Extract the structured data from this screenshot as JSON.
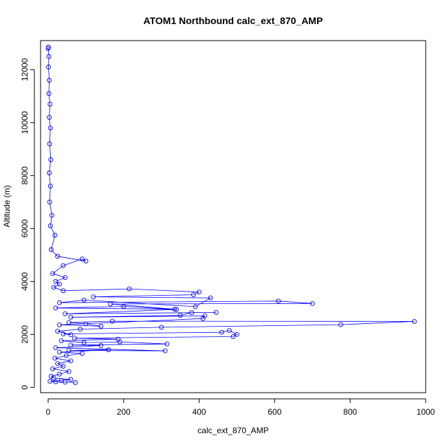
{
  "chart_data": {
    "type": "scatter",
    "title": "ATOM1 Northbound calc_ext_870_AMP",
    "xlabel": "calc_ext_870_AMP",
    "ylabel": "Altitude (m)",
    "xlim": [
      -20,
      1000
    ],
    "ylim": [
      -200,
      13100
    ],
    "xticks": [
      0,
      200,
      400,
      600,
      800,
      1000
    ],
    "yticks": [
      0,
      2000,
      4000,
      6000,
      8000,
      10000,
      12000
    ],
    "marker": "open-circle",
    "connect_points": true,
    "series": [
      {
        "color": "#0000ff",
        "points": [
          [
            72,
            180
          ],
          [
            45,
            200
          ],
          [
            20,
            210
          ],
          [
            5,
            230
          ],
          [
            35,
            260
          ],
          [
            60,
            300
          ],
          [
            15,
            350
          ],
          [
            8,
            420
          ],
          [
            30,
            500
          ],
          [
            55,
            600
          ],
          [
            12,
            700
          ],
          [
            40,
            800
          ],
          [
            25,
            900
          ],
          [
            60,
            1000
          ],
          [
            18,
            1100
          ],
          [
            48,
            1200
          ],
          [
            90,
            1280
          ],
          [
            30,
            1330
          ],
          [
            160,
            1420
          ],
          [
            55,
            1400
          ],
          [
            310,
            1380
          ],
          [
            20,
            1500
          ],
          [
            140,
            1580
          ],
          [
            60,
            1600
          ],
          [
            315,
            1640
          ],
          [
            190,
            1720
          ],
          [
            95,
            1690
          ],
          [
            35,
            1760
          ],
          [
            185,
            1820
          ],
          [
            70,
            1860
          ],
          [
            490,
            1920
          ],
          [
            500,
            2000
          ],
          [
            480,
            2150
          ],
          [
            460,
            2080
          ],
          [
            40,
            2020
          ],
          [
            60,
            1990
          ],
          [
            25,
            2120
          ],
          [
            85,
            2200
          ],
          [
            300,
            2270
          ],
          [
            775,
            2370
          ],
          [
            970,
            2490
          ],
          [
            170,
            2500
          ],
          [
            55,
            2450
          ],
          [
            100,
            2400
          ],
          [
            140,
            2310
          ],
          [
            30,
            2360
          ],
          [
            410,
            2600
          ],
          [
            415,
            2700
          ],
          [
            60,
            2650
          ],
          [
            350,
            2720
          ],
          [
            380,
            2820
          ],
          [
            445,
            2830
          ],
          [
            45,
            2780
          ],
          [
            340,
            2940
          ],
          [
            200,
            3060
          ],
          [
            20,
            3000
          ],
          [
            335,
            2950
          ],
          [
            165,
            3150
          ],
          [
            700,
            3170
          ],
          [
            610,
            3260
          ],
          [
            30,
            3200
          ],
          [
            95,
            3300
          ],
          [
            390,
            3050
          ],
          [
            430,
            3380
          ],
          [
            120,
            3420
          ],
          [
            385,
            3500
          ],
          [
            400,
            3600
          ],
          [
            215,
            3720
          ],
          [
            40,
            3650
          ],
          [
            15,
            3780
          ],
          [
            30,
            3900
          ],
          [
            20,
            4000
          ],
          [
            45,
            4150
          ],
          [
            12,
            4300
          ],
          [
            40,
            4600
          ],
          [
            90,
            4850
          ],
          [
            100,
            4770
          ],
          [
            25,
            4950
          ],
          [
            8,
            5200
          ],
          [
            18,
            5750
          ],
          [
            6,
            6100
          ],
          [
            10,
            6500
          ],
          [
            4,
            7000
          ],
          [
            6,
            7600
          ],
          [
            3,
            8100
          ],
          [
            7,
            8600
          ],
          [
            4,
            9200
          ],
          [
            6,
            9800
          ],
          [
            3,
            10200
          ],
          [
            5,
            10700
          ],
          [
            2,
            11100
          ],
          [
            3,
            11600
          ],
          [
            1,
            12100
          ],
          [
            2,
            12500
          ],
          [
            0,
            12800
          ],
          [
            1,
            12850
          ]
        ]
      }
    ]
  }
}
